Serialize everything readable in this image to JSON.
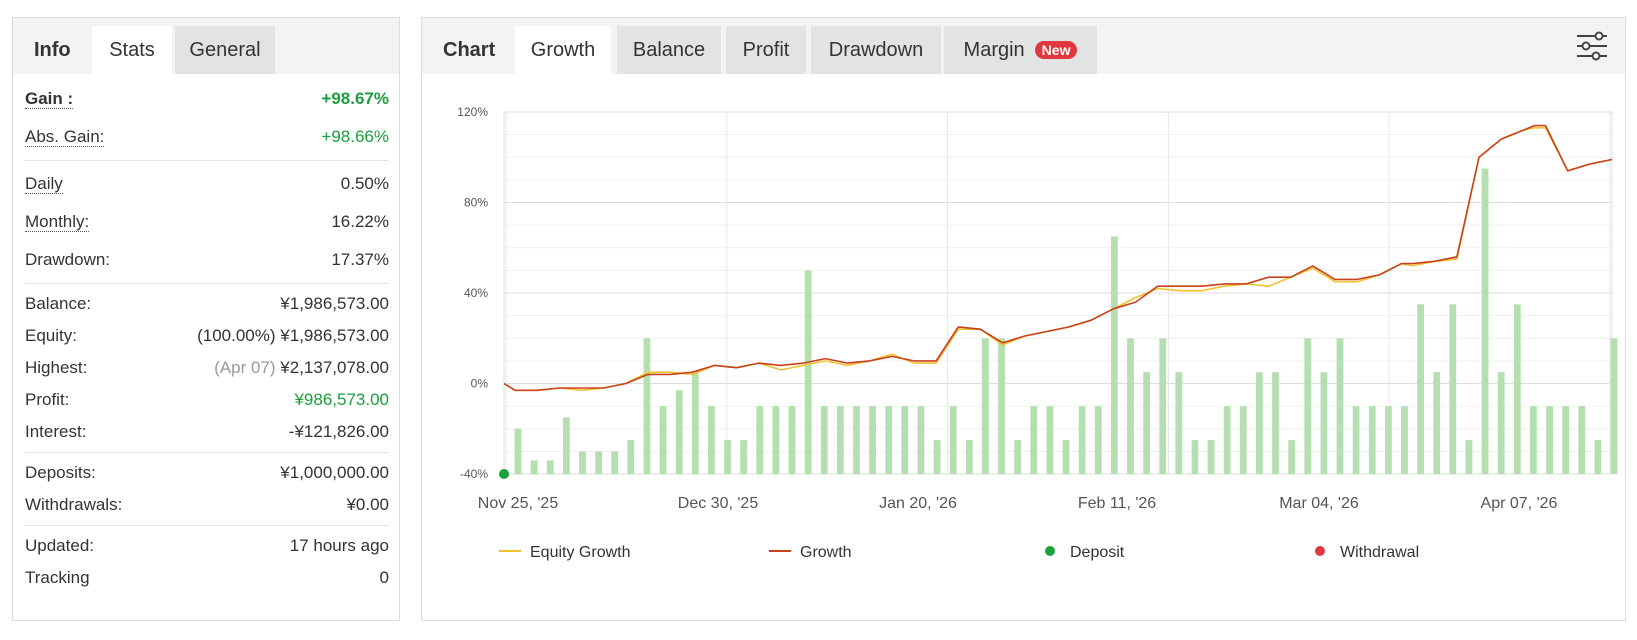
{
  "left_tabs": [
    {
      "label": "Info",
      "state": "lead"
    },
    {
      "label": "Stats",
      "state": "active"
    },
    {
      "label": "General",
      "state": "inactive"
    }
  ],
  "stats": {
    "gain": {
      "label": "Gain :",
      "value": "+98.67%"
    },
    "abs_gain": {
      "label": "Abs. Gain:",
      "value": "+98.66%"
    },
    "daily": {
      "label": "Daily",
      "value": "0.50%"
    },
    "monthly": {
      "label": "Monthly:",
      "value": "16.22%"
    },
    "drawdown": {
      "label": "Drawdown:",
      "value": "17.37%"
    },
    "balance": {
      "label": "Balance:",
      "value": "¥1,986,573.00"
    },
    "equity": {
      "label": "Equity:",
      "prefix": "(100.00%)",
      "value": "¥1,986,573.00"
    },
    "highest": {
      "label": "Highest:",
      "prefix": "(Apr 07)",
      "value": "¥2,137,078.00"
    },
    "profit": {
      "label": "Profit:",
      "value": "¥986,573.00"
    },
    "interest": {
      "label": "Interest:",
      "value": "-¥121,826.00"
    },
    "deposits": {
      "label": "Deposits:",
      "value": "¥1,000,000.00"
    },
    "withdrawals": {
      "label": "Withdrawals:",
      "value": "¥0.00"
    },
    "updated": {
      "label": "Updated:",
      "value": "17 hours ago"
    },
    "tracking": {
      "label": "Tracking",
      "value": "0"
    }
  },
  "right_tabs": [
    {
      "label": "Chart",
      "state": "lead"
    },
    {
      "label": "Growth",
      "state": "active"
    },
    {
      "label": "Balance",
      "state": "inactive"
    },
    {
      "label": "Profit",
      "state": "inactive"
    },
    {
      "label": "Drawdown",
      "state": "inactive"
    },
    {
      "label": "Margin",
      "state": "inactive",
      "badge": "New"
    }
  ],
  "settings_icon": "sliders-icon",
  "colors": {
    "equity_growth": "#f2c12e",
    "growth": "#c8421d",
    "bars": "#b5dfb0",
    "deposit": "#1aa13a",
    "withdrawal": "#e0383e",
    "gain_text": "#1a9e3c"
  },
  "chart_data": {
    "type": "line",
    "title": "",
    "xlabel": "",
    "ylabel": "",
    "ylim": [
      -40,
      120
    ],
    "y_ticks": [
      "120%",
      "80%",
      "40%",
      "0%",
      "-40%"
    ],
    "x_tick_labels": [
      "Nov 25, '25",
      "Dec 30, '25",
      "Jan 20, '26",
      "Feb 11, '26",
      "Mar 04, '26",
      "Apr 07, '26"
    ],
    "grid": true,
    "legend_position": "bottom",
    "series": [
      {
        "name": "Equity Growth",
        "kind": "line",
        "x": [
          0,
          1,
          2,
          3,
          5,
          7,
          9,
          11,
          13,
          15,
          17,
          19,
          21,
          23,
          25,
          27,
          29,
          31,
          33,
          35,
          37,
          39,
          41,
          43,
          45,
          47,
          49,
          51,
          53,
          55,
          57,
          59,
          61,
          63,
          65,
          67,
          69,
          71,
          73,
          75,
          77,
          79,
          81,
          82,
          84,
          86,
          88,
          90,
          91,
          92,
          93,
          94,
          96,
          98,
          100
        ],
        "values": [
          0,
          -3,
          -3,
          -3,
          -2,
          -3,
          -2,
          0,
          5,
          5,
          4,
          8,
          7,
          9,
          6,
          8,
          10,
          8,
          10,
          13,
          9,
          9,
          24,
          24,
          17,
          21,
          23,
          25,
          28,
          33,
          38,
          42,
          41,
          41,
          43,
          44,
          43,
          47,
          51,
          45,
          45,
          48,
          53,
          52,
          54,
          55,
          100,
          108,
          110,
          112,
          113,
          113,
          94,
          97,
          99
        ]
      },
      {
        "name": "Growth",
        "kind": "line",
        "x": [
          0,
          1,
          2,
          3,
          5,
          7,
          9,
          11,
          13,
          15,
          17,
          19,
          21,
          23,
          25,
          27,
          29,
          31,
          33,
          35,
          37,
          39,
          41,
          43,
          45,
          47,
          49,
          51,
          53,
          55,
          57,
          59,
          61,
          63,
          65,
          67,
          69,
          71,
          73,
          75,
          77,
          79,
          81,
          82,
          84,
          86,
          88,
          90,
          91,
          92,
          93,
          94,
          96,
          98,
          100
        ],
        "values": [
          0,
          -3,
          -3,
          -3,
          -2,
          -2,
          -2,
          0,
          4,
          4,
          5,
          8,
          7,
          9,
          8,
          9,
          11,
          9,
          10,
          12,
          10,
          10,
          25,
          24,
          18,
          21,
          23,
          25,
          28,
          33,
          36,
          43,
          43,
          43,
          44,
          44,
          47,
          47,
          52,
          46,
          46,
          48,
          53,
          53,
          54,
          56,
          100,
          108,
          110,
          112,
          114,
          114,
          94,
          97,
          99
        ]
      },
      {
        "name": "",
        "kind": "bar",
        "values": [
          -20,
          -34,
          -34,
          -15,
          -30,
          -30,
          -30,
          -25,
          20,
          -10,
          -3,
          5,
          -10,
          -25,
          -25,
          -10,
          -10,
          -10,
          50,
          -10,
          -10,
          -10,
          -10,
          -10,
          -10,
          -10,
          -25,
          -10,
          -25,
          20,
          20,
          -25,
          -10,
          -10,
          -25,
          -10,
          -10,
          65,
          20,
          5,
          20,
          5,
          -25,
          -25,
          -10,
          -10,
          5,
          5,
          -25,
          20,
          5,
          20,
          -10,
          -10,
          -10,
          -10,
          35,
          5,
          35,
          -25,
          95,
          5,
          35,
          -10,
          -10,
          -10,
          -10,
          -25,
          20
        ]
      },
      {
        "name": "Deposit",
        "kind": "marker",
        "x": [
          0
        ],
        "values": [
          -40
        ]
      },
      {
        "name": "Withdrawal",
        "kind": "marker",
        "x": [],
        "values": []
      }
    ]
  }
}
